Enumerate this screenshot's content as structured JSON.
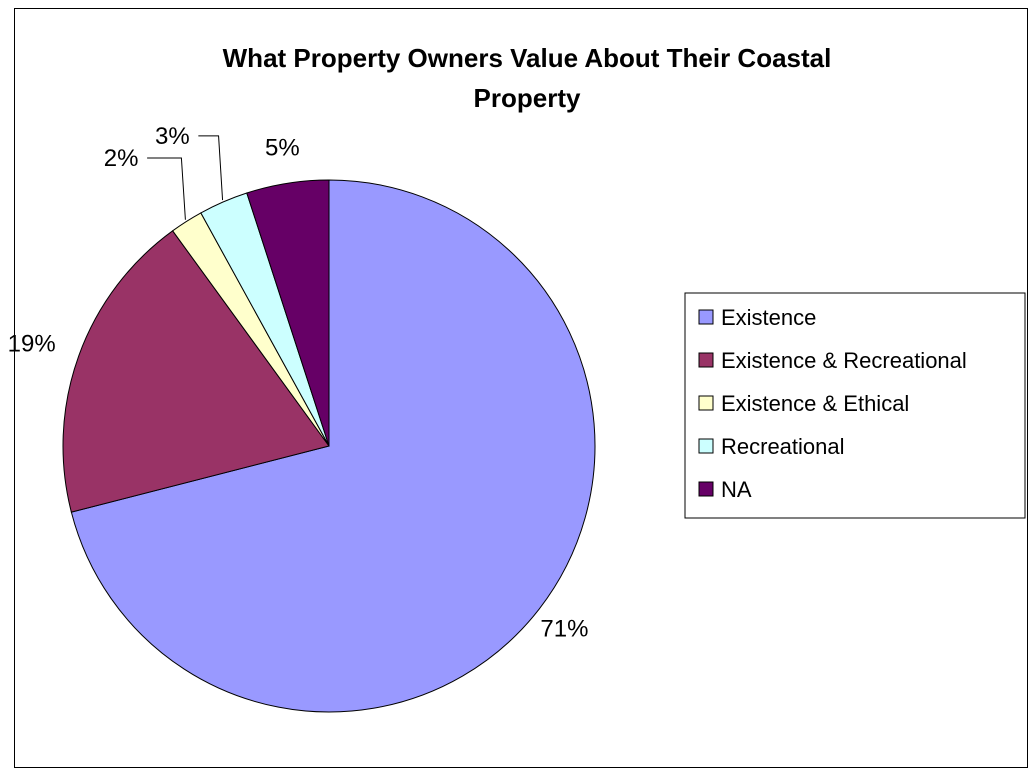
{
  "chart_data": {
    "type": "pie",
    "title": "What Property Owners Value About Their Coastal Property",
    "title_lines": [
      "What Property Owners Value About Their Coastal",
      "Property"
    ],
    "categories": [
      "Existence",
      "Existence & Recreational",
      "Existence & Ethical",
      "Recreational",
      "NA"
    ],
    "values": [
      71,
      19,
      2,
      3,
      5
    ],
    "labels": [
      "71%",
      "19%",
      "2%",
      "3%",
      "5%"
    ],
    "colors": [
      "#9999ff",
      "#993366",
      "#ffffcc",
      "#ccffff",
      "#660066"
    ],
    "legend_position": "right",
    "start": "12 o'clock",
    "direction": "clockwise"
  }
}
